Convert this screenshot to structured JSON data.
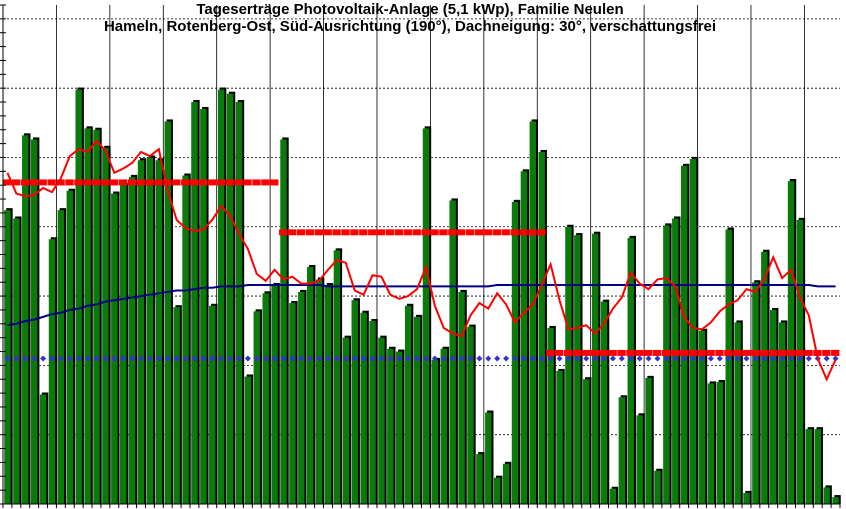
{
  "chart_data": {
    "type": "bar",
    "title": "Tageserträge Photovoltaik-Anlage (5,1 kWp),  Familie Neulen",
    "subtitle": "Hameln, Rotenberg-Ost, Süd-Ausrichtung (190°), Dachneigung: 30°, verschattungsfrei",
    "xlabel": "",
    "ylabel": "",
    "ylim": [
      0,
      36
    ],
    "x_count": 94,
    "grid": true,
    "legend": "none",
    "colors": {
      "bars": "#0a7a0a",
      "bar_shadow": "#000000",
      "moving_average": "#ff0000",
      "cumulative_average": "#000080",
      "monthly_mean": "#ff0000",
      "reference": "#3333cc",
      "grid": "#000000"
    },
    "series": [
      {
        "type": "bar",
        "values": [
          21.2,
          20.6,
          26.6,
          26.3,
          7.9,
          19.1,
          21.2,
          22.6,
          29.9,
          27.1,
          27.0,
          25.7,
          22.4,
          23.0,
          23.6,
          24.8,
          25.0,
          24.8,
          27.6,
          14.2,
          23.7,
          29.0,
          28.5,
          14.3,
          29.9,
          29.6,
          29.0,
          9.2,
          13.9,
          15.2,
          15.8,
          26.3,
          14.5,
          15.3,
          17.1,
          16.2,
          15.8,
          18.3,
          12.0,
          14.7,
          13.8,
          13.2,
          12.0,
          11.2,
          11.0,
          14.3,
          13.5,
          27.1,
          10.4,
          11.2,
          21.9,
          15.3,
          12.8,
          3.6,
          6.6,
          1.9,
          2.9,
          21.8,
          24.0,
          27.6,
          25.4,
          12.7,
          9.6,
          20.0,
          19.4,
          9.0,
          19.5,
          14.6,
          1.1,
          7.7,
          19.2,
          6.4,
          9.1,
          2.4,
          20.1,
          20.6,
          24.4,
          24.9,
          12.5,
          8.7,
          8.8,
          19.8,
          13.1,
          0.8,
          16.0,
          18.2,
          14.0,
          13.1,
          23.3,
          20.5,
          5.4,
          5.4,
          1.2,
          0.5
        ]
      },
      {
        "type": "line",
        "values": [
          23.9,
          22.4,
          22.2,
          22.3,
          22.8,
          22.5,
          23.5,
          25.1,
          25.6,
          25.4,
          26.2,
          25.5,
          23.9,
          24.2,
          24.6,
          25.4,
          25.1,
          25.6,
          22.6,
          20.5,
          19.9,
          19.7,
          19.8,
          20.5,
          21.5,
          20.8,
          19.5,
          18.4,
          16.6,
          16.1,
          16.9,
          16.2,
          16.4,
          15.9,
          15.9,
          16.1,
          16.9,
          17.6,
          17.4,
          15.4,
          15.1,
          16.5,
          16.4,
          15.1,
          14.8,
          15.0,
          15.5,
          17.1,
          14.3,
          12.7,
          12.3,
          12.1,
          13.6,
          14.5,
          14.1,
          15.2,
          14.4,
          13.1,
          13.8,
          14.4,
          15.8,
          17.3,
          14.7,
          12.6,
          12.7,
          12.9,
          12.3,
          13.0,
          14.1,
          14.9,
          16.7,
          15.9,
          15.5,
          16.2,
          16.3,
          15.7,
          13.5,
          12.7,
          12.6,
          13.1,
          13.9,
          14.4,
          14.7,
          15.5,
          15.3,
          16.2,
          17.8,
          16.3,
          16.9,
          14.9,
          13.6,
          10.5,
          9.0,
          10.4
        ]
      },
      {
        "type": "line",
        "values": [
          12.9,
          13.0,
          13.2,
          13.3,
          13.5,
          13.7,
          13.8,
          14.0,
          14.1,
          14.3,
          14.4,
          14.6,
          14.7,
          14.8,
          14.9,
          15.0,
          15.1,
          15.2,
          15.3,
          15.4,
          15.4,
          15.5,
          15.6,
          15.6,
          15.7,
          15.7,
          15.7,
          15.8,
          15.8,
          15.8,
          15.8,
          15.8,
          15.8,
          15.8,
          15.8,
          15.8,
          15.7,
          15.7,
          15.7,
          15.7,
          15.7,
          15.7,
          15.7,
          15.7,
          15.7,
          15.7,
          15.7,
          15.7,
          15.7,
          15.7,
          15.7,
          15.7,
          15.7,
          15.7,
          15.7,
          15.8,
          15.8,
          15.8,
          15.8,
          15.8,
          15.8,
          15.8,
          15.8,
          15.8,
          15.8,
          15.8,
          15.8,
          15.8,
          15.8,
          15.8,
          15.8,
          15.8,
          15.8,
          15.8,
          15.8,
          15.8,
          15.8,
          15.8,
          15.8,
          15.8,
          15.8,
          15.8,
          15.8,
          15.8,
          15.8,
          15.8,
          15.8,
          15.8,
          15.8,
          15.8,
          15.8,
          15.7,
          15.7,
          15.7
        ]
      },
      {
        "type": "step",
        "segments": [
          {
            "x_start": 0,
            "x_end": 31,
            "value": 23.2
          },
          {
            "x_start": 31,
            "x_end": 61,
            "value": 19.6
          },
          {
            "x_start": 61,
            "x_end": 94,
            "value": 10.9
          }
        ]
      },
      {
        "type": "flat",
        "value": 10.5
      }
    ]
  }
}
